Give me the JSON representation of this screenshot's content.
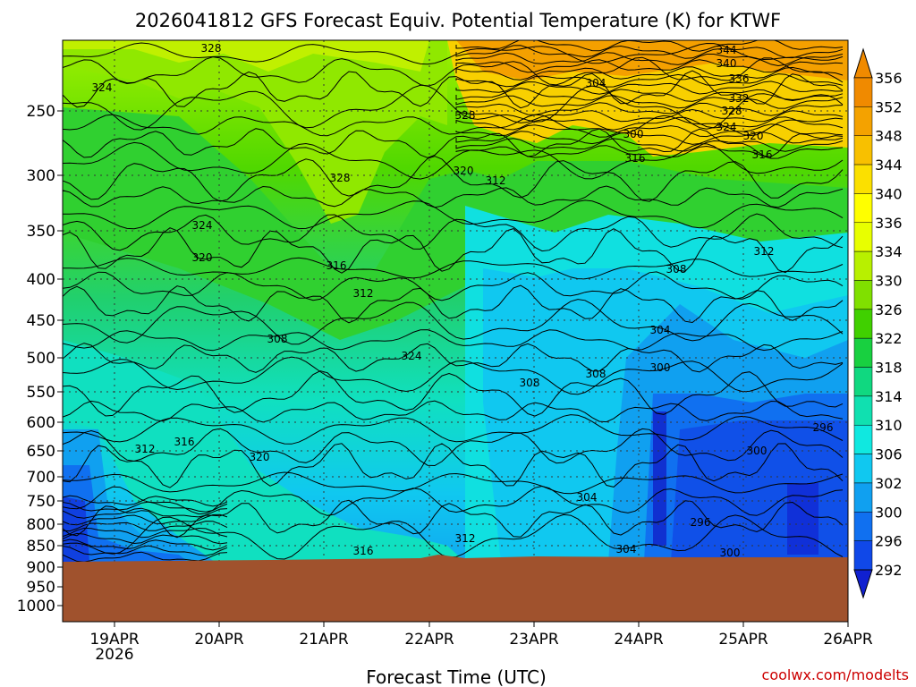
{
  "title": "2026041812 GFS Forecast Equiv. Potential Temperature (K) for KTWF",
  "watermark": "coolwx.com/modelts",
  "chart_data": {
    "type": "heatmap",
    "title": "2026041812 GFS Forecast Equiv. Potential Temperature (K) for KTWF",
    "xlabel": "Forecast Time (UTC)",
    "x_ticks": [
      "19APR",
      "20APR",
      "21APR",
      "22APR",
      "23APR",
      "24APR",
      "25APR",
      "26APR"
    ],
    "x_sublabel": "2026",
    "y_ticks": [
      "250",
      "300",
      "350",
      "400",
      "450",
      "500",
      "550",
      "600",
      "650",
      "700",
      "750",
      "800",
      "850",
      "900",
      "950",
      "1000"
    ],
    "y_scale": "pressure (hPa), inverted, log-like",
    "colorbar_levels": [
      "356",
      "352",
      "348",
      "344",
      "340",
      "336",
      "334",
      "330",
      "326",
      "322",
      "318",
      "314",
      "310",
      "306",
      "302",
      "300",
      "296",
      "292"
    ],
    "colorbar_colors": [
      "#f08a00",
      "#f4a200",
      "#f8c000",
      "#fbe000",
      "#ffff00",
      "#e8ff00",
      "#b8f000",
      "#80e000",
      "#40d000",
      "#18d040",
      "#10d880",
      "#10e0b0",
      "#10e8e0",
      "#10c8f0",
      "#10a0f0",
      "#1070f0",
      "#1048e8",
      "#1020d0"
    ],
    "contour_labels": [
      "328",
      "324",
      "328",
      "324",
      "320",
      "316",
      "312",
      "308",
      "312",
      "316",
      "320",
      "324",
      "328",
      "344",
      "340",
      "336",
      "332",
      "328",
      "324",
      "320",
      "316",
      "312",
      "308",
      "304",
      "300",
      "296",
      "304",
      "300",
      "296",
      "304",
      "300",
      "312",
      "316",
      "308",
      "312",
      "304",
      "300",
      "308",
      "316",
      "320"
    ],
    "grid": true,
    "ground_color": "#a0522d"
  }
}
